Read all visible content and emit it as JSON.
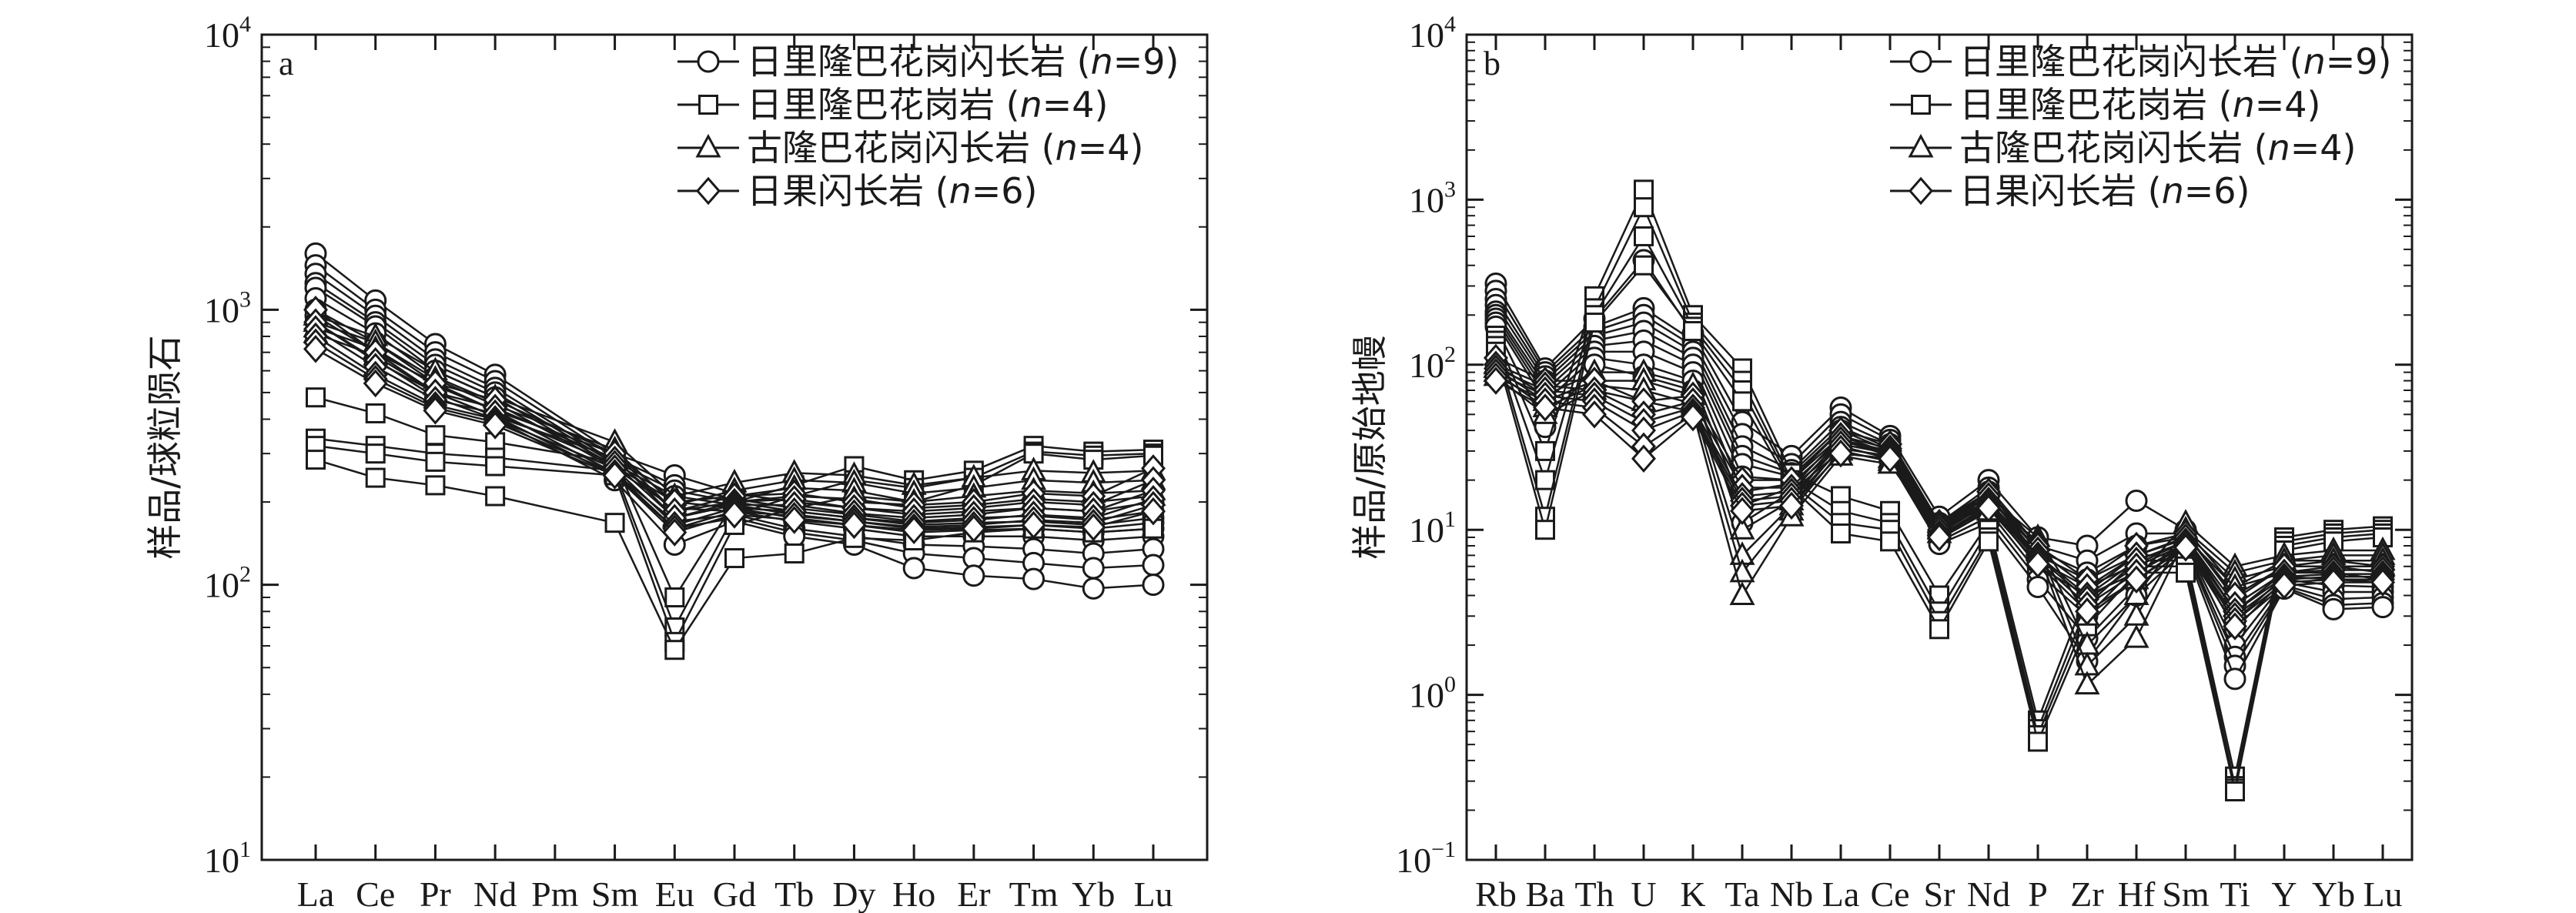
{
  "chart_data": [
    {
      "type": "line",
      "panel_label": "a",
      "ylabel": "样品/球粒陨石",
      "yscale": "log",
      "ylim": [
        10,
        10000
      ],
      "y_ticks": [
        {
          "base": "10",
          "exp": "1"
        },
        {
          "base": "10",
          "exp": "2"
        },
        {
          "base": "10",
          "exp": "3"
        },
        {
          "base": "10",
          "exp": "4"
        }
      ],
      "categories": [
        "La",
        "Ce",
        "Pr",
        "Nd",
        "Pm",
        "Sm",
        "Eu",
        "Gd",
        "Tb",
        "Dy",
        "Ho",
        "Er",
        "Tm",
        "Yb",
        "Lu"
      ],
      "legend_position": "top-right",
      "legend": [
        {
          "marker": "circle",
          "label": "日里隆巴花岗闪长岩",
          "n_text": "(n=9)"
        },
        {
          "marker": "square",
          "label": "日里隆巴花岗岩",
          "n_text": "(n=4)"
        },
        {
          "marker": "triangle",
          "label": "古隆巴花岗闪长岩",
          "n_text": "(n=4)"
        },
        {
          "marker": "diamond",
          "label": "日果闪长岩",
          "n_text": "(n=6)"
        }
      ],
      "series": [
        {
          "marker": "circle",
          "values": [
            1600,
            1080,
            750,
            580,
            null,
            300,
            250,
            215,
            200,
            190,
            180,
            185,
            190,
            185,
            200
          ]
        },
        {
          "marker": "circle",
          "values": [
            1450,
            1000,
            700,
            550,
            null,
            290,
            230,
            205,
            190,
            180,
            170,
            175,
            178,
            172,
            185
          ]
        },
        {
          "marker": "circle",
          "values": [
            1350,
            950,
            660,
            520,
            null,
            280,
            220,
            200,
            185,
            175,
            165,
            168,
            170,
            165,
            175
          ]
        },
        {
          "marker": "circle",
          "values": [
            1250,
            900,
            630,
            500,
            null,
            275,
            210,
            195,
            180,
            170,
            160,
            162,
            165,
            160,
            168
          ]
        },
        {
          "marker": "circle",
          "values": [
            1200,
            870,
            600,
            480,
            null,
            270,
            200,
            190,
            175,
            165,
            155,
            158,
            160,
            155,
            160
          ]
        },
        {
          "marker": "circle",
          "values": [
            1100,
            820,
            570,
            460,
            null,
            265,
            190,
            185,
            170,
            160,
            150,
            150,
            150,
            145,
            150
          ]
        },
        {
          "marker": "circle",
          "values": [
            1000,
            760,
            540,
            430,
            null,
            255,
            170,
            180,
            160,
            150,
            140,
            138,
            135,
            130,
            135
          ]
        },
        {
          "marker": "circle",
          "values": [
            950,
            700,
            500,
            410,
            null,
            250,
            160,
            175,
            155,
            145,
            130,
            125,
            120,
            115,
            118
          ]
        },
        {
          "marker": "circle",
          "values": [
            900,
            660,
            480,
            400,
            null,
            240,
            140,
            170,
            150,
            140,
            115,
            108,
            105,
            97,
            100
          ]
        },
        {
          "marker": "square",
          "values": [
            480,
            420,
            350,
            330,
            null,
            280,
            90,
            200,
            230,
            270,
            240,
            260,
            320,
            305,
            310
          ]
        },
        {
          "marker": "square",
          "values": [
            340,
            320,
            300,
            290,
            null,
            260,
            70,
            180,
            210,
            240,
            225,
            245,
            305,
            295,
            300
          ]
        },
        {
          "marker": "square",
          "values": [
            320,
            300,
            280,
            270,
            null,
            250,
            62,
            165,
            190,
            210,
            200,
            230,
            300,
            285,
            295
          ]
        },
        {
          "marker": "square",
          "values": [
            285,
            245,
            230,
            210,
            null,
            168,
            58,
            125,
            130,
            148,
            145,
            155,
            160,
            155,
            160
          ]
        },
        {
          "marker": "triangle",
          "values": [
            950,
            800,
            600,
            480,
            null,
            330,
            210,
            235,
            255,
            250,
            230,
            245,
            260,
            255,
            260
          ]
        },
        {
          "marker": "triangle",
          "values": [
            900,
            760,
            560,
            450,
            null,
            310,
            195,
            220,
            240,
            235,
            215,
            225,
            240,
            235,
            240
          ]
        },
        {
          "marker": "triangle",
          "values": [
            860,
            720,
            530,
            430,
            null,
            300,
            185,
            210,
            225,
            220,
            200,
            210,
            220,
            215,
            220
          ]
        },
        {
          "marker": "triangle",
          "values": [
            820,
            680,
            500,
            410,
            null,
            290,
            175,
            200,
            210,
            205,
            190,
            195,
            205,
            200,
            210
          ]
        },
        {
          "marker": "diamond",
          "values": [
            1000,
            700,
            540,
            470,
            null,
            300,
            200,
            210,
            215,
            200,
            195,
            200,
            215,
            210,
            265
          ]
        },
        {
          "marker": "diamond",
          "values": [
            900,
            650,
            500,
            440,
            null,
            285,
            185,
            200,
            205,
            190,
            185,
            190,
            200,
            195,
            240
          ]
        },
        {
          "marker": "diamond",
          "values": [
            850,
            620,
            470,
            420,
            null,
            275,
            175,
            195,
            195,
            182,
            175,
            180,
            190,
            185,
            220
          ]
        },
        {
          "marker": "diamond",
          "values": [
            800,
            580,
            450,
            400,
            null,
            265,
            165,
            190,
            185,
            175,
            168,
            172,
            180,
            175,
            205
          ]
        },
        {
          "marker": "diamond",
          "values": [
            760,
            560,
            440,
            390,
            null,
            255,
            160,
            185,
            178,
            170,
            162,
            165,
            172,
            168,
            195
          ]
        },
        {
          "marker": "diamond",
          "values": [
            720,
            540,
            430,
            380,
            null,
            250,
            155,
            180,
            172,
            165,
            158,
            160,
            165,
            162,
            185
          ]
        }
      ]
    },
    {
      "type": "line",
      "panel_label": "b",
      "ylabel": "样品/原始地幔",
      "yscale": "log",
      "ylim": [
        0.1,
        10000
      ],
      "y_ticks": [
        {
          "base": "10",
          "exp": "−1"
        },
        {
          "base": "10",
          "exp": "0"
        },
        {
          "base": "10",
          "exp": "1"
        },
        {
          "base": "10",
          "exp": "2"
        },
        {
          "base": "10",
          "exp": "3"
        },
        {
          "base": "10",
          "exp": "4"
        }
      ],
      "categories": [
        "Rb",
        "Ba",
        "Th",
        "U",
        "K",
        "Ta",
        "Nb",
        "La",
        "Ce",
        "Sr",
        "Nd",
        "P",
        "Zr",
        "Hf",
        "Sm",
        "Ti",
        "Y",
        "Yb",
        "Lu"
      ],
      "legend_position": "top-right",
      "legend": [
        {
          "marker": "circle",
          "label": "日里隆巴花岗闪长岩",
          "n_text": "(n=9)"
        },
        {
          "marker": "square",
          "label": "日里隆巴花岗岩",
          "n_text": "(n=4)"
        },
        {
          "marker": "triangle",
          "label": "古隆巴花岗闪长岩",
          "n_text": "(n=4)"
        },
        {
          "marker": "diamond",
          "label": "日果闪长岩",
          "n_text": "(n=6)"
        }
      ],
      "series": [
        {
          "marker": "circle",
          "values": [
            310,
            95,
            190,
            430,
            155,
            45,
            28,
            55,
            37,
            12,
            20,
            9,
            8,
            15,
            10,
            4.5,
            6.5,
            6.5,
            6
          ]
        },
        {
          "marker": "circle",
          "values": [
            280,
            90,
            170,
            220,
            140,
            38,
            25,
            50,
            35,
            11,
            18,
            8,
            6.5,
            9.5,
            9.5,
            3.8,
            6,
            6,
            5.5
          ]
        },
        {
          "marker": "circle",
          "values": [
            250,
            85,
            160,
            200,
            130,
            32,
            23,
            45,
            33,
            10.5,
            17,
            7.5,
            5.5,
            8,
            9,
            3.2,
            5.5,
            5.5,
            5
          ]
        },
        {
          "marker": "circle",
          "values": [
            230,
            80,
            150,
            180,
            120,
            28,
            22,
            42,
            31,
            10,
            16,
            7,
            5,
            7,
            8.8,
            2.8,
            5.2,
            5,
            4.8
          ]
        },
        {
          "marker": "circle",
          "values": [
            210,
            75,
            140,
            160,
            110,
            25,
            21,
            40,
            30,
            9.5,
            15,
            6.5,
            4.5,
            6.2,
            8.5,
            2.5,
            5,
            4.6,
            4.5
          ]
        },
        {
          "marker": "circle",
          "values": [
            200,
            70,
            130,
            140,
            100,
            21,
            20,
            37,
            29,
            9,
            14,
            6,
            4,
            5.5,
            8.2,
            2,
            4.8,
            4.2,
            4.2
          ]
        },
        {
          "marker": "circle",
          "values": [
            190,
            65,
            120,
            120,
            90,
            17,
            19,
            35,
            28,
            8.8,
            13,
            5.5,
            3,
            5,
            8,
            1.7,
            4.6,
            3.8,
            3.9
          ]
        },
        {
          "marker": "circle",
          "values": [
            180,
            60,
            110,
            100,
            80,
            14,
            18,
            32,
            27,
            8.5,
            12,
            5,
            2.2,
            4.5,
            7.8,
            1.5,
            4.5,
            3.5,
            3.6
          ]
        },
        {
          "marker": "circle",
          "values": [
            170,
            42,
            100,
            85,
            70,
            11,
            17,
            30,
            26,
            8.2,
            11,
            4.5,
            1.6,
            4,
            7.5,
            1.25,
            4.4,
            3.3,
            3.4
          ]
        },
        {
          "marker": "square",
          "values": [
            150,
            30,
            260,
            1150,
            200,
            95,
            22,
            16,
            13,
            4,
            11,
            0.7,
            4.2,
            7,
            7,
            0.32,
            9,
            10,
            10.5
          ]
        },
        {
          "marker": "square",
          "values": [
            140,
            20,
            220,
            900,
            180,
            80,
            20,
            13,
            11,
            3.2,
            10,
            0.62,
            3.5,
            6.5,
            6.5,
            0.28,
            8.5,
            9.5,
            10
          ]
        },
        {
          "marker": "square",
          "values": [
            130,
            12,
            200,
            600,
            170,
            70,
            19,
            11,
            10,
            2.8,
            9,
            0.57,
            3,
            6,
            6,
            0.27,
            8,
            9,
            9.5
          ]
        },
        {
          "marker": "square",
          "values": [
            120,
            10,
            180,
            400,
            160,
            60,
            18,
            9.5,
            8.5,
            2.5,
            8.5,
            0.52,
            2.6,
            5.5,
            5.5,
            0.26,
            7.5,
            8.5,
            9
          ]
        },
        {
          "marker": "triangle",
          "values": [
            100,
            65,
            90,
            90,
            75,
            10,
            15,
            35,
            29,
            11,
            16,
            9,
            3,
            5,
            11,
            6,
            7,
            7.5,
            7.5
          ]
        },
        {
          "marker": "triangle",
          "values": [
            95,
            60,
            80,
            80,
            65,
            7,
            14,
            32,
            27,
            10.5,
            15,
            8.5,
            2,
            4,
            10,
            5.5,
            6.5,
            7,
            7
          ]
        },
        {
          "marker": "triangle",
          "values": [
            90,
            55,
            75,
            70,
            58,
            5.5,
            13,
            30,
            26,
            10,
            14,
            8,
            1.5,
            3,
            9.5,
            5,
            6,
            6.5,
            6.5
          ]
        },
        {
          "marker": "triangle",
          "values": [
            85,
            50,
            70,
            60,
            52,
            4,
            12,
            28,
            25,
            9.5,
            13,
            7.5,
            1.15,
            2.2,
            9,
            4.5,
            5.5,
            6,
            6
          ]
        },
        {
          "marker": "diamond",
          "values": [
            110,
            80,
            80,
            60,
            65,
            20,
            20,
            40,
            33,
            11,
            17,
            8,
            5,
            8,
            9.5,
            4,
            6,
            6,
            6
          ]
        },
        {
          "marker": "diamond",
          "values": [
            100,
            75,
            70,
            50,
            60,
            18,
            18,
            37,
            31,
            10.5,
            16,
            7.5,
            4.5,
            7,
            9,
            3.5,
            5.5,
            5.7,
            5.7
          ]
        },
        {
          "marker": "diamond",
          "values": [
            95,
            70,
            65,
            45,
            55,
            16,
            17,
            35,
            30,
            10,
            15,
            7,
            4,
            6.5,
            8.5,
            3.2,
            5.2,
            5.4,
            5.4
          ]
        },
        {
          "marker": "diamond",
          "values": [
            90,
            65,
            60,
            40,
            52,
            15,
            16,
            33,
            29,
            9.5,
            14.5,
            6.8,
            3.8,
            6,
            8.2,
            3,
            5,
            5.2,
            5.2
          ]
        },
        {
          "marker": "diamond",
          "values": [
            85,
            60,
            55,
            32,
            50,
            14,
            15,
            31,
            28,
            9.2,
            14,
            6.5,
            3.5,
            5.5,
            8,
            2.8,
            4.8,
            5,
            5
          ]
        },
        {
          "marker": "diamond",
          "values": [
            80,
            55,
            50,
            27,
            48,
            13,
            14,
            29,
            27,
            9,
            13.5,
            6.2,
            3.2,
            5,
            7.8,
            2.6,
            4.6,
            4.8,
            4.8
          ]
        }
      ]
    }
  ]
}
